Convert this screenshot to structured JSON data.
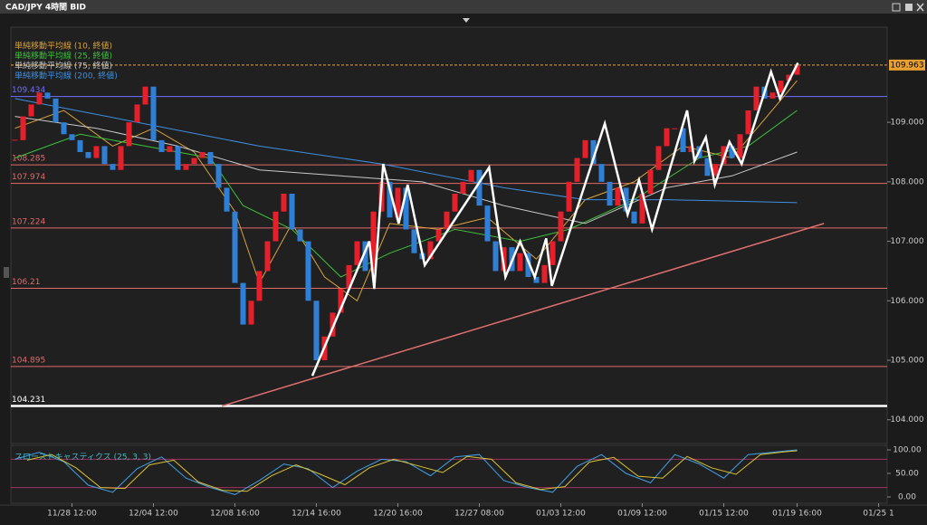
{
  "chart_data": {
    "type": "candlestick",
    "title": "CAD/JPY 4時間 BID",
    "categories": [
      null,
      null,
      null,
      null,
      null,
      null,
      null,
      "11/28 12:00",
      null,
      null,
      null,
      null,
      null,
      null,
      null,
      null,
      null,
      "12/04 12:00",
      null,
      null,
      null,
      null,
      null,
      null,
      null,
      null,
      null,
      "12/08 16:00",
      null,
      null,
      null,
      null,
      null,
      null,
      null,
      null,
      null,
      "12/14 16:00",
      null,
      null,
      null,
      null,
      null,
      null,
      null,
      null,
      null,
      "12/20 16:00",
      null,
      null,
      null,
      null,
      null,
      null,
      null,
      null,
      null,
      "12/27 08:00",
      null,
      null,
      null,
      null,
      null,
      null,
      null,
      null,
      null,
      "01/03 12:00",
      null,
      null,
      null,
      null,
      null,
      null,
      null,
      null,
      null,
      "01/09 12:00",
      null,
      null,
      null,
      null,
      null,
      null,
      null,
      null,
      null,
      "01/15 12:00",
      null,
      null,
      null,
      null,
      null,
      null,
      null,
      null,
      "01/19 16:00",
      null,
      null,
      null,
      null,
      null,
      null,
      null,
      null,
      null,
      "01/25 1"
    ],
    "close": [
      108.7,
      109.1,
      109.3,
      109.5,
      109.4,
      109.0,
      108.8,
      108.7,
      108.5,
      108.4,
      108.6,
      108.3,
      108.2,
      108.6,
      109.0,
      109.3,
      109.6,
      108.7,
      108.5,
      108.6,
      108.2,
      108.3,
      108.4,
      108.5,
      108.3,
      107.9,
      107.5,
      106.3,
      105.6,
      106.0,
      106.5,
      107.0,
      107.5,
      107.8,
      107.2,
      107.0,
      106.0,
      105.0,
      105.4,
      105.8,
      106.2,
      106.6,
      107.0,
      106.5,
      107.5,
      108.0,
      107.4,
      107.9,
      107.2,
      106.8,
      106.7,
      107.0,
      107.2,
      107.5,
      107.8,
      108.0,
      108.2,
      107.6,
      107.0,
      106.5,
      106.9,
      106.5,
      106.8,
      106.4,
      106.3,
      106.6,
      107.0,
      107.5,
      108.0,
      108.4,
      108.7,
      108.3,
      108.0,
      107.6,
      107.9,
      107.5,
      107.3,
      107.8,
      108.2,
      108.6,
      108.9,
      108.9,
      108.5,
      108.6,
      108.4,
      108.1,
      108.3,
      108.6,
      108.4,
      108.8,
      109.2,
      109.6,
      109.4,
      109.5,
      109.7,
      109.8,
      109.96,
      null,
      null,
      null,
      null,
      null,
      null,
      null,
      null,
      null,
      null
    ],
    "up_color": "#e5202a",
    "down_color": "#2f7fd6",
    "ylim": [
      103.6,
      110.6
    ],
    "yticks": [
      {
        "value": 104,
        "label": "104.000"
      },
      {
        "value": 105,
        "label": "105.000"
      },
      {
        "value": 106,
        "label": "106.000"
      },
      {
        "value": 107,
        "label": "107.000"
      },
      {
        "value": 108,
        "label": "108.000"
      },
      {
        "value": 109,
        "label": "109.000"
      }
    ],
    "levels": [
      {
        "value": 109.434,
        "color": "#6f6fff"
      },
      {
        "value": 108.285,
        "color": "#e06a6a"
      },
      {
        "value": 107.974,
        "color": "#e06a6a"
      },
      {
        "value": 107.224,
        "color": "#e06a6a"
      },
      {
        "value": 106.21,
        "color": "#e06a6a"
      },
      {
        "value": 104.895,
        "color": "#e06a6a"
      },
      {
        "value": 104.231,
        "color": "#ffffff"
      }
    ],
    "last_price": {
      "value": 109.963,
      "color": "#e8a030"
    },
    "moving_averages": [
      {
        "name": "単純移動平均線 (10, 終値)",
        "color": "#d9a23a",
        "points": [
          [
            0,
            108.9
          ],
          [
            6,
            109.2
          ],
          [
            12,
            108.6
          ],
          [
            17,
            108.9
          ],
          [
            22,
            108.5
          ],
          [
            27,
            107.5
          ],
          [
            30,
            106.3
          ],
          [
            34,
            107.3
          ],
          [
            38,
            106.4
          ],
          [
            42,
            106.0
          ],
          [
            46,
            107.3
          ],
          [
            52,
            107.2
          ],
          [
            58,
            107.4
          ],
          [
            64,
            106.7
          ],
          [
            70,
            107.7
          ],
          [
            76,
            108.0
          ],
          [
            82,
            108.6
          ],
          [
            88,
            108.4
          ],
          [
            96,
            109.7
          ]
        ]
      },
      {
        "name": "単純移動平均線 (25, 終値)",
        "color": "#3cc23c",
        "points": [
          [
            0,
            108.4
          ],
          [
            8,
            108.8
          ],
          [
            16,
            108.6
          ],
          [
            24,
            108.4
          ],
          [
            28,
            107.6
          ],
          [
            34,
            107.2
          ],
          [
            40,
            106.4
          ],
          [
            46,
            106.8
          ],
          [
            54,
            107.2
          ],
          [
            62,
            107.0
          ],
          [
            68,
            107.2
          ],
          [
            76,
            107.7
          ],
          [
            84,
            108.4
          ],
          [
            90,
            108.6
          ],
          [
            96,
            109.2
          ]
        ]
      },
      {
        "name": "単純移動平均線 (75, 終値)",
        "color": "#c8c8c8",
        "points": [
          [
            0,
            109.1
          ],
          [
            10,
            108.9
          ],
          [
            20,
            108.6
          ],
          [
            30,
            108.2
          ],
          [
            40,
            108.1
          ],
          [
            50,
            108.0
          ],
          [
            60,
            107.6
          ],
          [
            70,
            107.3
          ],
          [
            80,
            107.9
          ],
          [
            88,
            108.1
          ],
          [
            96,
            108.5
          ]
        ]
      },
      {
        "name": "単純移動平均線 (200, 終値)",
        "color": "#3f8fe0",
        "points": [
          [
            0,
            109.4
          ],
          [
            15,
            109.0
          ],
          [
            30,
            108.6
          ],
          [
            45,
            108.3
          ],
          [
            60,
            107.9
          ],
          [
            70,
            107.7
          ],
          [
            80,
            107.7
          ],
          [
            96,
            107.65
          ]
        ]
      }
    ],
    "zigzag": {
      "color": "#ffffff",
      "points": [
        [
          36.5,
          104.74
        ],
        [
          43.5,
          107.0
        ],
        [
          44.1,
          106.2
        ],
        [
          45.2,
          108.3
        ],
        [
          47.1,
          107.3
        ],
        [
          48.2,
          107.95
        ],
        [
          50.3,
          106.6
        ],
        [
          58.2,
          108.24
        ],
        [
          60.2,
          106.4
        ],
        [
          62,
          107.0
        ],
        [
          63.8,
          106.4
        ],
        [
          65.2,
          107.05
        ],
        [
          65.9,
          106.25
        ],
        [
          72.4,
          108.98
        ],
        [
          75.2,
          107.45
        ],
        [
          76.6,
          108.03
        ],
        [
          78.2,
          107.2
        ],
        [
          82.5,
          109.2
        ],
        [
          83.4,
          108.35
        ],
        [
          84.8,
          108.75
        ],
        [
          85.9,
          107.95
        ],
        [
          87.7,
          108.67
        ],
        [
          89.2,
          108.3
        ],
        [
          92.8,
          109.85
        ],
        [
          93.9,
          109.4
        ],
        [
          96.1,
          110.0
        ]
      ]
    },
    "trendline": {
      "color": "#e07070",
      "points": [
        [
          25.4,
          104.23
        ],
        [
          99.3,
          107.3
        ]
      ]
    },
    "stochastic": {
      "title": "スローストキャスティクス (25, 3, 3)",
      "ylim": [
        0,
        100
      ],
      "yticks": [
        {
          "value": 0,
          "label": "0.00"
        },
        {
          "value": 50,
          "label": "50.00"
        },
        {
          "value": 100,
          "label": "100.00"
        }
      ],
      "levels": [
        20,
        80
      ],
      "level_color": "#a03060",
      "series": [
        {
          "color": "#3fa0e8",
          "points": [
            [
              0,
              80
            ],
            [
              3,
              95
            ],
            [
              6,
              75
            ],
            [
              9,
              25
            ],
            [
              12,
              10
            ],
            [
              15,
              60
            ],
            [
              18,
              85
            ],
            [
              21,
              40
            ],
            [
              24,
              20
            ],
            [
              27,
              5
            ],
            [
              30,
              35
            ],
            [
              33,
              70
            ],
            [
              36,
              60
            ],
            [
              39,
              20
            ],
            [
              42,
              55
            ],
            [
              45,
              80
            ],
            [
              48,
              75
            ],
            [
              51,
              45
            ],
            [
              54,
              85
            ],
            [
              57,
              90
            ],
            [
              60,
              35
            ],
            [
              63,
              20
            ],
            [
              66,
              10
            ],
            [
              69,
              65
            ],
            [
              72,
              90
            ],
            [
              75,
              50
            ],
            [
              78,
              30
            ],
            [
              81,
              90
            ],
            [
              84,
              70
            ],
            [
              87,
              40
            ],
            [
              90,
              90
            ],
            [
              93,
              95
            ],
            [
              96,
              100
            ]
          ]
        },
        {
          "color": "#d8c030",
          "points": [
            [
              1.5,
              78
            ],
            [
              4.5,
              90
            ],
            [
              7.5,
              62
            ],
            [
              10.5,
              20
            ],
            [
              13.5,
              18
            ],
            [
              16.5,
              68
            ],
            [
              19.5,
              78
            ],
            [
              22.5,
              32
            ],
            [
              25.5,
              14
            ],
            [
              28.5,
              12
            ],
            [
              31.5,
              45
            ],
            [
              34.5,
              68
            ],
            [
              37.5,
              48
            ],
            [
              40.5,
              26
            ],
            [
              43.5,
              62
            ],
            [
              46.5,
              80
            ],
            [
              49.5,
              66
            ],
            [
              52.5,
              52
            ],
            [
              55.5,
              86
            ],
            [
              58.5,
              80
            ],
            [
              61.5,
              30
            ],
            [
              64.5,
              16
            ],
            [
              67.5,
              22
            ],
            [
              70.5,
              74
            ],
            [
              73.5,
              84
            ],
            [
              76.5,
              44
            ],
            [
              79.5,
              40
            ],
            [
              82.5,
              86
            ],
            [
              85.5,
              62
            ],
            [
              88.5,
              48
            ],
            [
              91.5,
              90
            ],
            [
              94.5,
              96
            ],
            [
              96,
              98
            ]
          ]
        }
      ]
    }
  }
}
